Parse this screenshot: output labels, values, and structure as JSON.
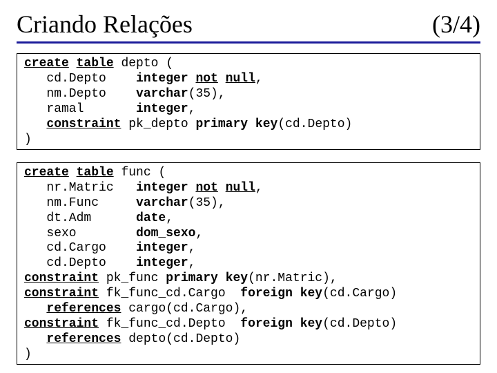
{
  "title": {
    "text": "Criando Relações",
    "counter": "(3/4)",
    "border_color": "#1a1a9a",
    "font_family": "Times New Roman",
    "font_size_pt": 36
  },
  "code": {
    "font_family": "Courier New",
    "font_size_pt": 18,
    "box_border_color": "#000000",
    "background_color": "#ffffff",
    "text_color": "#000000"
  },
  "box1": {
    "line1": {
      "a": "create",
      "b": "table",
      "c": " depto ("
    },
    "line2": {
      "col": "   cd.Depto    ",
      "type": "integer ",
      "nn1": "not",
      "sp": " ",
      "nn2": "null",
      "end": ","
    },
    "line3": {
      "col": "   nm.Depto    ",
      "type": "varchar",
      "end": "(35),"
    },
    "line4": {
      "col": "   ramal       ",
      "type": "integer",
      "end": ","
    },
    "line5": {
      "a": "   ",
      "kw": "constraint",
      "b": " pk_depto ",
      "pk1": "primary",
      "sp": " ",
      "pk2": "key",
      "c": "(cd.Depto)"
    },
    "line6": ")"
  },
  "box2": {
    "line1": {
      "a": "create",
      "b": "table",
      "c": " func ("
    },
    "line2": {
      "col": "   nr.Matric   ",
      "type": "integer ",
      "nn1": "not",
      "sp": " ",
      "nn2": "null",
      "end": ","
    },
    "line3": {
      "col": "   nm.Func     ",
      "type": "varchar",
      "end": "(35),"
    },
    "line4": {
      "col": "   dt.Adm      ",
      "type": "date",
      "end": ","
    },
    "line5": {
      "col": "   sexo        ",
      "type": "dom_sexo",
      "end": ","
    },
    "line6": {
      "col": "   cd.Cargo    ",
      "type": "integer",
      "end": ","
    },
    "line7": {
      "col": "   cd.Depto    ",
      "type": "integer",
      "end": ","
    },
    "line8": {
      "kw": "constraint",
      "a": " pk_func ",
      "k1": "primary",
      "sp": " ",
      "k2": "key",
      "b": "(nr.Matric),"
    },
    "line9": {
      "kw": "constraint",
      "a": " fk_func_cd.Cargo  ",
      "k1": "foreign",
      "sp": " ",
      "k2": "key",
      "b": "(cd.Cargo)"
    },
    "line10": {
      "a": "   ",
      "kw": "references",
      "b": " cargo(cd.Cargo),"
    },
    "line11": {
      "kw": "constraint",
      "a": " fk_func_cd.Depto  ",
      "k1": "foreign",
      "sp": " ",
      "k2": "key",
      "b": "(cd.Depto)"
    },
    "line12": {
      "a": "   ",
      "kw": "references",
      "b": " depto(cd.Depto)"
    },
    "line13": ")"
  }
}
